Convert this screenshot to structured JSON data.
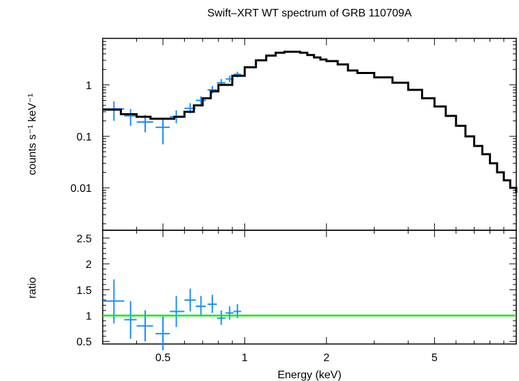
{
  "chart_data": [
    {
      "type": "scatter",
      "panel": "spectrum",
      "title": "Swift–XRT WT spectrum of GRB 110709A",
      "ylabel": "counts s⁻¹ keV⁻¹",
      "xlabel": "Energy (keV)",
      "xscale": "log",
      "yscale": "log",
      "xlim": [
        0.3,
        10.0
      ],
      "ylim": [
        0.0015,
        8.0
      ],
      "x_ticks": [
        "0.5",
        "1",
        "2",
        "5"
      ],
      "y_ticks": [
        "0.01",
        "0.1",
        "1"
      ],
      "series": [
        {
          "role": "data",
          "color": "#1a8cff",
          "points": [
            {
              "x": 0.33,
              "y": 0.34,
              "xlo": 0.3,
              "xhi": 0.36,
              "ylo": 0.2,
              "yhi": 0.48
            },
            {
              "x": 0.38,
              "y": 0.25,
              "xlo": 0.36,
              "xhi": 0.4,
              "ylo": 0.16,
              "yhi": 0.34
            },
            {
              "x": 0.43,
              "y": 0.19,
              "xlo": 0.4,
              "xhi": 0.46,
              "ylo": 0.12,
              "yhi": 0.26
            },
            {
              "x": 0.5,
              "y": 0.15,
              "xlo": 0.47,
              "xhi": 0.53,
              "ylo": 0.07,
              "yhi": 0.22
            },
            {
              "x": 0.56,
              "y": 0.24,
              "xlo": 0.53,
              "xhi": 0.6,
              "ylo": 0.18,
              "yhi": 0.32
            },
            {
              "x": 0.63,
              "y": 0.35,
              "xlo": 0.6,
              "xhi": 0.66,
              "ylo": 0.28,
              "yhi": 0.44
            },
            {
              "x": 0.69,
              "y": 0.5,
              "xlo": 0.66,
              "xhi": 0.72,
              "ylo": 0.42,
              "yhi": 0.6
            },
            {
              "x": 0.76,
              "y": 0.8,
              "xlo": 0.73,
              "xhi": 0.79,
              "ylo": 0.68,
              "yhi": 0.95
            },
            {
              "x": 0.82,
              "y": 1.1,
              "xlo": 0.79,
              "xhi": 0.85,
              "ylo": 0.95,
              "yhi": 1.3
            },
            {
              "x": 0.88,
              "y": 1.3,
              "xlo": 0.85,
              "xhi": 0.91,
              "ylo": 1.12,
              "yhi": 1.5
            },
            {
              "x": 0.94,
              "y": 1.6,
              "xlo": 0.91,
              "xhi": 0.97,
              "ylo": 1.4,
              "yhi": 1.8
            }
          ]
        },
        {
          "role": "model",
          "color": "#000000",
          "x": [
            0.3,
            0.35,
            0.4,
            0.45,
            0.5,
            0.55,
            0.6,
            0.65,
            0.7,
            0.75,
            0.8,
            0.9,
            1.0,
            1.1,
            1.2,
            1.3,
            1.4,
            1.5,
            1.6,
            1.7,
            1.8,
            1.9,
            2.0,
            2.2,
            2.4,
            2.6,
            3.0,
            3.5,
            4.0,
            4.5,
            5.0,
            5.5,
            6.0,
            6.5,
            7.0,
            7.5,
            8.0,
            8.5,
            9.0,
            9.5,
            10.0
          ],
          "y": [
            0.33,
            0.27,
            0.24,
            0.22,
            0.22,
            0.24,
            0.3,
            0.4,
            0.55,
            0.75,
            1.0,
            1.5,
            2.2,
            3.0,
            3.7,
            4.2,
            4.4,
            4.4,
            4.2,
            3.8,
            3.4,
            3.1,
            2.9,
            2.5,
            1.9,
            1.7,
            1.4,
            1.1,
            0.8,
            0.55,
            0.38,
            0.25,
            0.16,
            0.1,
            0.065,
            0.045,
            0.03,
            0.02,
            0.014,
            0.01,
            0.008
          ]
        }
      ]
    },
    {
      "type": "scatter",
      "panel": "ratio",
      "ylabel": "ratio",
      "xlabel": "Energy (keV)",
      "xscale": "log",
      "xlim": [
        0.3,
        10.0
      ],
      "ylim": [
        0.45,
        2.65
      ],
      "x_ticks": [
        "0.5",
        "1",
        "2",
        "5"
      ],
      "y_ticks": [
        "0.5",
        "1",
        "1.5",
        "2",
        "2.5"
      ],
      "reference_line": {
        "y": 1.0,
        "color": "#00ee00"
      },
      "series": [
        {
          "role": "data",
          "color": "#1a8cff",
          "points": [
            {
              "x": 0.33,
              "y": 1.28,
              "xlo": 0.3,
              "xhi": 0.36,
              "ylo": 0.85,
              "yhi": 1.7
            },
            {
              "x": 0.38,
              "y": 0.92,
              "xlo": 0.36,
              "xhi": 0.4,
              "ylo": 0.55,
              "yhi": 1.28
            },
            {
              "x": 0.43,
              "y": 0.8,
              "xlo": 0.4,
              "xhi": 0.46,
              "ylo": 0.5,
              "yhi": 1.1
            },
            {
              "x": 0.5,
              "y": 0.65,
              "xlo": 0.47,
              "xhi": 0.53,
              "ylo": 0.33,
              "yhi": 0.98
            },
            {
              "x": 0.56,
              "y": 1.08,
              "xlo": 0.53,
              "xhi": 0.6,
              "ylo": 0.78,
              "yhi": 1.38
            },
            {
              "x": 0.63,
              "y": 1.3,
              "xlo": 0.6,
              "xhi": 0.66,
              "ylo": 1.08,
              "yhi": 1.52
            },
            {
              "x": 0.69,
              "y": 1.18,
              "xlo": 0.66,
              "xhi": 0.72,
              "ylo": 0.98,
              "yhi": 1.38
            },
            {
              "x": 0.76,
              "y": 1.22,
              "xlo": 0.73,
              "xhi": 0.79,
              "ylo": 1.05,
              "yhi": 1.4
            },
            {
              "x": 0.82,
              "y": 0.95,
              "xlo": 0.79,
              "xhi": 0.85,
              "ylo": 0.82,
              "yhi": 1.1
            },
            {
              "x": 0.88,
              "y": 1.05,
              "xlo": 0.85,
              "xhi": 0.91,
              "ylo": 0.92,
              "yhi": 1.18
            },
            {
              "x": 0.94,
              "y": 1.08,
              "xlo": 0.91,
              "xhi": 0.97,
              "ylo": 0.95,
              "yhi": 1.22
            }
          ]
        }
      ]
    }
  ]
}
